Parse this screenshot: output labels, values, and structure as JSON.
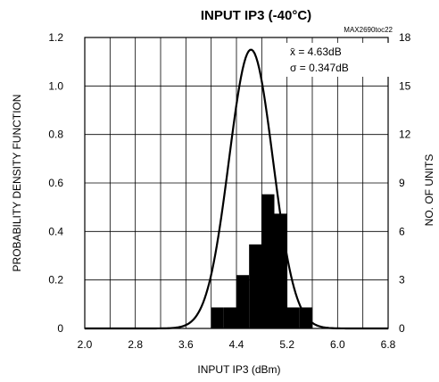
{
  "chart_data": {
    "type": "bar",
    "title": "INPUT IP3 (-40°C)",
    "code_label": "MAX2690toc22",
    "xlabel": "INPUT IP3 (dBm)",
    "ylabel": "PROBABILITY DENSITY FUNCTION",
    "y2label": "NO. OF UNITS",
    "xlim": [
      2.0,
      6.8
    ],
    "ylim": [
      0,
      1.2
    ],
    "y2lim": [
      0,
      18
    ],
    "x_ticks": [
      "2.0",
      "2.8",
      "3.6",
      "4.4",
      "5.2",
      "6.0",
      "6.8"
    ],
    "x_tick_values": [
      2.0,
      2.8,
      3.6,
      4.4,
      5.2,
      6.0,
      6.8
    ],
    "y_ticks": [
      "0",
      "0.2",
      "0.4",
      "0.6",
      "0.8",
      "1.0",
      "1.2"
    ],
    "y_tick_values": [
      0,
      0.2,
      0.4,
      0.6,
      0.8,
      1.0,
      1.2
    ],
    "y2_ticks": [
      "0",
      "3",
      "6",
      "9",
      "12",
      "15",
      "18"
    ],
    "y2_tick_values": [
      0,
      3,
      6,
      9,
      12,
      15,
      18
    ],
    "grid_x_step": 0.4,
    "grid_y_step": 0.2,
    "stats": {
      "mean_label": "x̄ = 4.63dB",
      "sigma_label": "σ = 0.347dB"
    },
    "series": [
      {
        "type": "histogram",
        "bin_width": 0.2,
        "bins": [
          {
            "x": 4.1,
            "units": 1.3
          },
          {
            "x": 4.3,
            "units": 1.3
          },
          {
            "x": 4.5,
            "units": 3.3
          },
          {
            "x": 4.7,
            "units": 5.2
          },
          {
            "x": 4.9,
            "units": 8.3
          },
          {
            "x": 5.1,
            "units": 7.1
          },
          {
            "x": 5.3,
            "units": 1.3
          },
          {
            "x": 5.5,
            "units": 1.3
          }
        ]
      },
      {
        "type": "line",
        "distribution": "normal",
        "mean": 4.63,
        "sigma": 0.347,
        "peak": 1.15
      }
    ]
  }
}
